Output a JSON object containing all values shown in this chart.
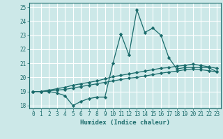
{
  "title": "",
  "xlabel": "Humidex (Indice chaleur)",
  "background_color": "#cce8e8",
  "grid_color": "#ffffff",
  "line_color": "#1a6b6b",
  "x_values": [
    0,
    1,
    2,
    3,
    4,
    5,
    6,
    7,
    8,
    9,
    10,
    11,
    12,
    13,
    14,
    15,
    16,
    17,
    18,
    19,
    20,
    21,
    22,
    23
  ],
  "line1": [
    19.0,
    19.0,
    19.0,
    18.9,
    18.7,
    18.0,
    18.3,
    18.5,
    18.6,
    18.6,
    21.0,
    23.1,
    21.6,
    24.8,
    23.2,
    23.5,
    23.0,
    21.4,
    20.6,
    20.7,
    20.7,
    20.7,
    20.7,
    20.4
  ],
  "line2": [
    19.0,
    19.0,
    19.1,
    19.2,
    19.3,
    19.45,
    19.55,
    19.65,
    19.75,
    19.9,
    20.05,
    20.15,
    20.25,
    20.35,
    20.45,
    20.55,
    20.65,
    20.7,
    20.8,
    20.85,
    20.95,
    20.85,
    20.75,
    20.65
  ],
  "line3": [
    19.0,
    19.0,
    19.05,
    19.1,
    19.15,
    19.25,
    19.35,
    19.45,
    19.55,
    19.65,
    19.75,
    19.85,
    19.95,
    20.0,
    20.1,
    20.2,
    20.3,
    20.38,
    20.45,
    20.55,
    20.6,
    20.55,
    20.48,
    20.4
  ],
  "ylim": [
    17.8,
    25.3
  ],
  "xlim": [
    -0.5,
    23.5
  ],
  "yticks": [
    18,
    19,
    20,
    21,
    22,
    23,
    24,
    25
  ],
  "xticks": [
    0,
    1,
    2,
    3,
    4,
    5,
    6,
    7,
    8,
    9,
    10,
    11,
    12,
    13,
    14,
    15,
    16,
    17,
    18,
    19,
    20,
    21,
    22,
    23
  ],
  "marker": "D",
  "markersize": 2.2,
  "linewidth": 0.9,
  "tick_fontsize": 5.5,
  "xlabel_fontsize": 6.5
}
